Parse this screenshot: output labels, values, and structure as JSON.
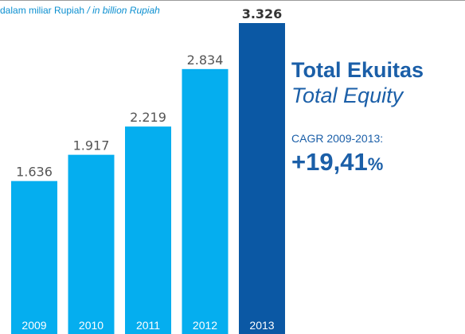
{
  "unit_note": {
    "id": "dalam miliar Rupiah",
    "separator": "/",
    "en": "in billion Rupiah"
  },
  "title": {
    "id": "Total Ekuitas",
    "en": "Total Equity"
  },
  "cagr": {
    "label": "CAGR 2009-2013:",
    "value": "+19,41",
    "unit": "%"
  },
  "colors": {
    "bar": "#05aeef",
    "bar_highlight": "#0b58a4",
    "title": "#1b5fa8"
  },
  "chart_data": {
    "type": "bar",
    "categories": [
      "2009",
      "2010",
      "2011",
      "2012",
      "2013"
    ],
    "values": [
      1636,
      1917,
      2219,
      2834,
      3326
    ],
    "value_labels": [
      "1.636",
      "1.917",
      "2.219",
      "2.834",
      "3.326"
    ],
    "highlight_index": 4,
    "ylim": [
      0,
      3326
    ],
    "grid": false,
    "legend": "none"
  }
}
